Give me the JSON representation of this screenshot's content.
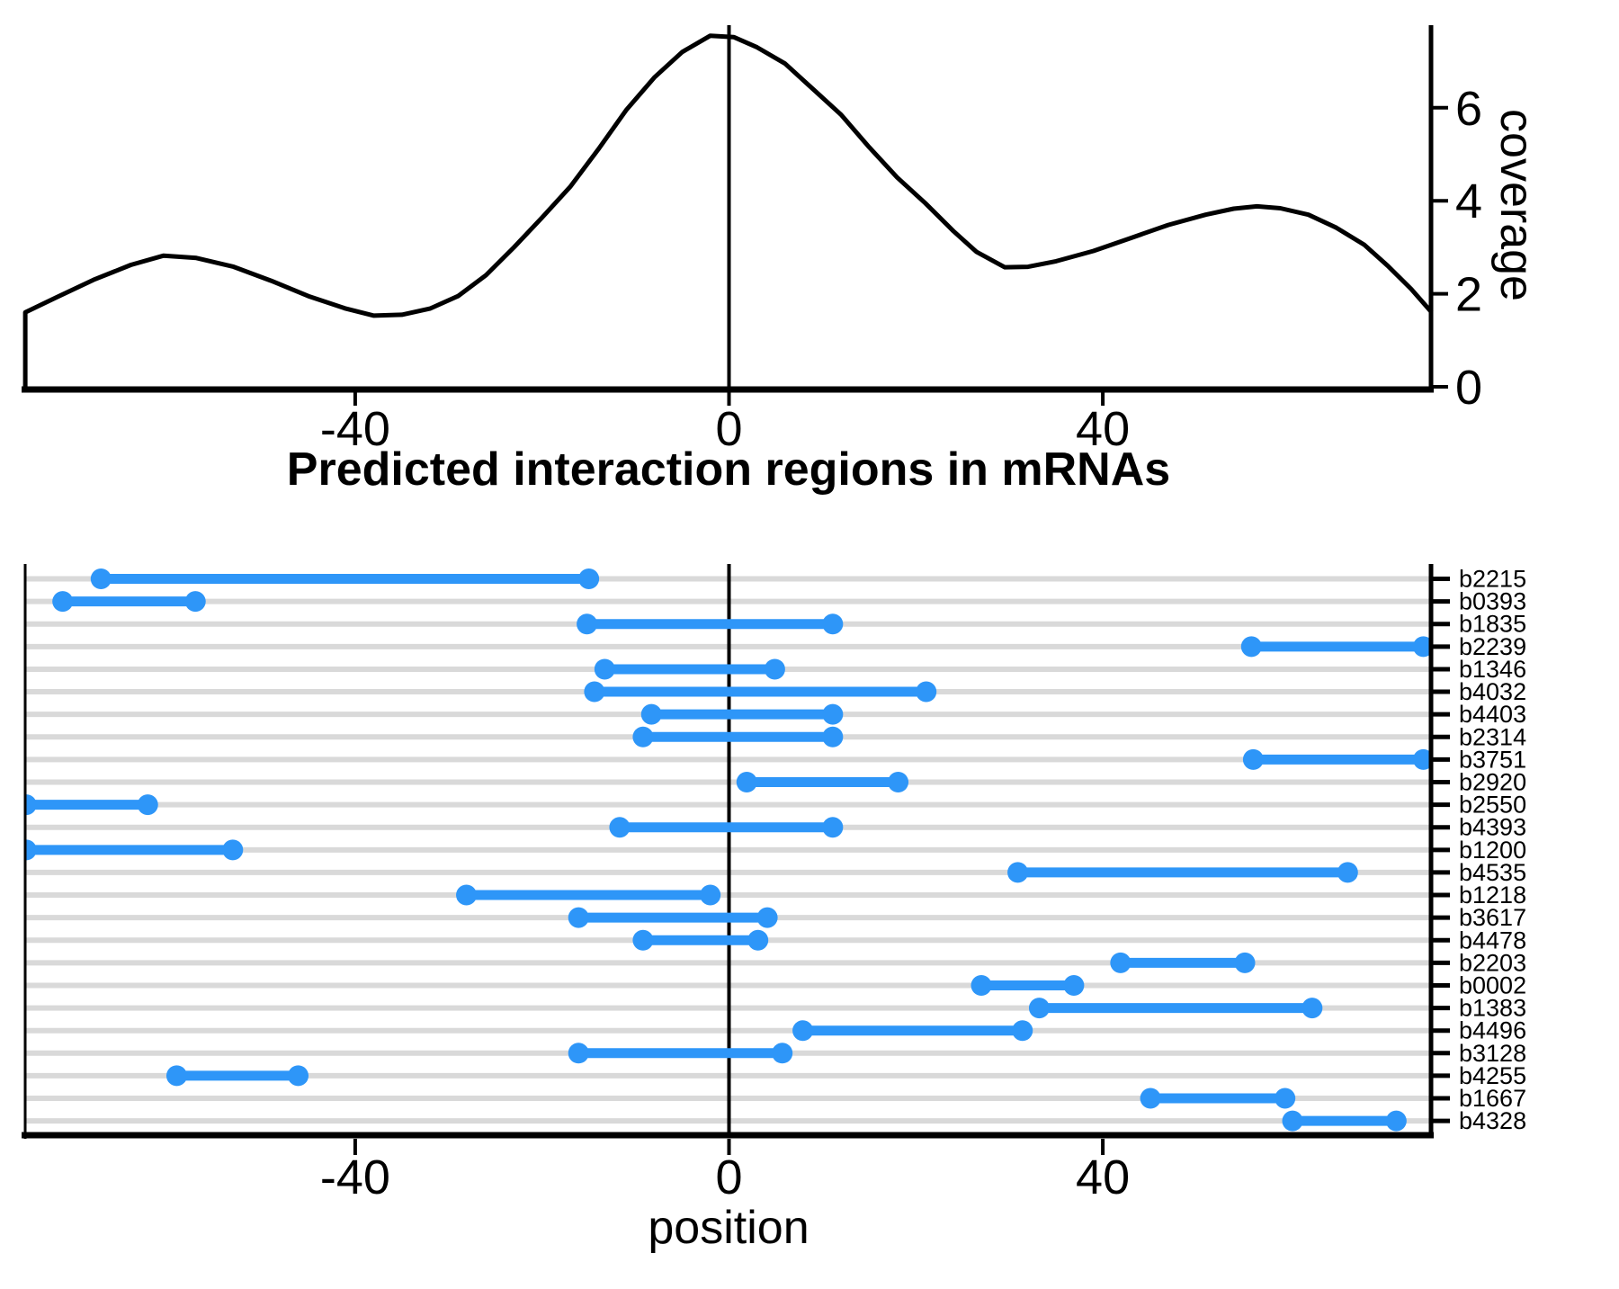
{
  "title": "Predicted interaction regions in mRNAs",
  "xlabel": "position",
  "ylabel_top": "coverage",
  "colors": {
    "segment": "#2E96F8",
    "grid": "#D9D9D9",
    "axis": "#000000",
    "curve": "#000000",
    "background": "#FFFFFF"
  },
  "chart_data": [
    {
      "type": "line",
      "name": "coverage-density",
      "title": "",
      "xlabel": "",
      "ylabel": "coverage",
      "xlim": [
        -75.3,
        75.2
      ],
      "ylim": [
        0,
        7.78
      ],
      "xticks": [
        -40,
        0,
        40
      ],
      "yticks": [
        0,
        2,
        4,
        6
      ],
      "zero_line_x": 0,
      "grid": false,
      "x": [
        -75.3,
        -72,
        -68,
        -64,
        -60.5,
        -57,
        -53,
        -49,
        -45,
        -41,
        -38,
        -35,
        -32,
        -29,
        -26,
        -23,
        -20,
        -17,
        -14,
        -11,
        -8,
        -5,
        -2,
        0.5,
        3,
        6,
        9,
        12,
        15,
        18,
        21,
        24,
        26.5,
        29.5,
        32,
        35,
        39,
        43,
        47,
        51,
        54,
        56.5,
        59,
        62,
        65,
        68,
        70.5,
        73,
        75.2
      ],
      "y": [
        1.6,
        1.92,
        2.3,
        2.62,
        2.82,
        2.77,
        2.58,
        2.28,
        1.95,
        1.68,
        1.53,
        1.55,
        1.68,
        1.95,
        2.4,
        3.0,
        3.64,
        4.3,
        5.1,
        5.95,
        6.65,
        7.2,
        7.55,
        7.52,
        7.3,
        6.95,
        6.4,
        5.85,
        5.15,
        4.5,
        3.95,
        3.35,
        2.9,
        2.57,
        2.58,
        2.7,
        2.92,
        3.2,
        3.48,
        3.7,
        3.83,
        3.88,
        3.84,
        3.7,
        3.42,
        3.05,
        2.6,
        2.1,
        1.6
      ]
    },
    {
      "type": "bar",
      "orientation": "horizontal-range",
      "name": "interaction-regions",
      "title": "Predicted interaction regions in mRNAs",
      "xlabel": "position",
      "xlim": [
        -75.3,
        75.2
      ],
      "xticks": [
        -40,
        0,
        40
      ],
      "zero_line_x": 0,
      "grid": true,
      "categories": [
        "b2215",
        "b0393",
        "b1835",
        "b2239",
        "b1346",
        "b4032",
        "b4403",
        "b2314",
        "b3751",
        "b2920",
        "b2550",
        "b4393",
        "b1200",
        "b4535",
        "b1218",
        "b3617",
        "b4478",
        "b2203",
        "b0002",
        "b1383",
        "b4496",
        "b3128",
        "b4255",
        "b1667",
        "b4328"
      ],
      "ranges": [
        [
          -67.2,
          -15.0
        ],
        [
          -71.3,
          -57.1
        ],
        [
          -15.2,
          11.1
        ],
        [
          55.9,
          74.3
        ],
        [
          -13.3,
          4.9
        ],
        [
          -14.4,
          21.1
        ],
        [
          -8.3,
          11.1
        ],
        [
          -9.2,
          11.1
        ],
        [
          56.1,
          74.3
        ],
        [
          1.9,
          18.1
        ],
        [
          -75.2,
          -62.2
        ],
        [
          -11.7,
          11.1
        ],
        [
          -75.2,
          -53.1
        ],
        [
          30.9,
          66.2
        ],
        [
          -28.1,
          -2.0
        ],
        [
          -16.1,
          4.1
        ],
        [
          -9.2,
          3.1
        ],
        [
          41.9,
          55.2
        ],
        [
          27.0,
          36.9
        ],
        [
          33.2,
          62.4
        ],
        [
          7.9,
          31.4
        ],
        [
          -16.1,
          5.7
        ],
        [
          -59.1,
          -46.1
        ],
        [
          45.1,
          59.5
        ],
        [
          60.3,
          71.4
        ]
      ]
    }
  ]
}
